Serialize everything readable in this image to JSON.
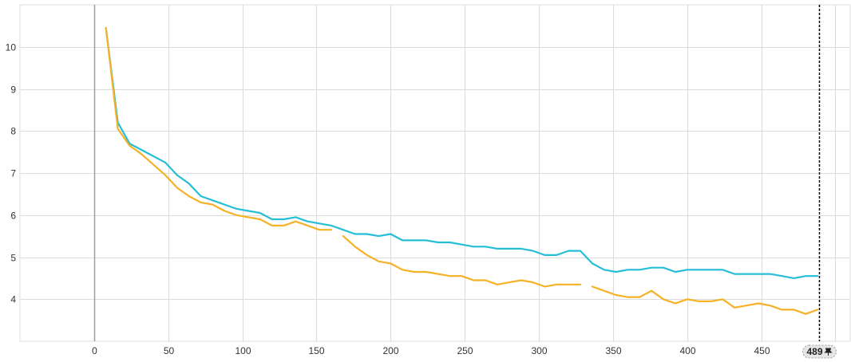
{
  "colors": {
    "series_teal": "#26bed6",
    "series_orange": "#f6b126",
    "grid": "#dcdcdc",
    "axis": "#9e9e9e",
    "cursor": "#000000"
  },
  "cursor": {
    "label": "489",
    "icon": "pin-icon",
    "value": 489
  },
  "chart_data": {
    "type": "line",
    "title": "",
    "xlabel": "",
    "ylabel": "",
    "xlim": [
      -50,
      510
    ],
    "ylim": [
      3,
      11
    ],
    "grid": true,
    "x_ticks": [
      "0",
      "50",
      "100",
      "150",
      "200",
      "250",
      "300",
      "350",
      "400",
      "450"
    ],
    "y_ticks": [
      "4",
      "5",
      "6",
      "7",
      "8",
      "9",
      "10"
    ],
    "series": [
      {
        "color": "#26bed6",
        "points": [
          [
            8,
            10.45
          ],
          [
            16,
            8.2
          ],
          [
            24,
            7.7
          ],
          [
            32,
            7.55
          ],
          [
            40,
            7.4
          ],
          [
            48,
            7.25
          ],
          [
            56,
            6.95
          ],
          [
            64,
            6.75
          ],
          [
            72,
            6.45
          ],
          [
            80,
            6.35
          ],
          [
            88,
            6.25
          ],
          [
            96,
            6.15
          ],
          [
            104,
            6.1
          ],
          [
            112,
            6.05
          ],
          [
            120,
            5.9
          ],
          [
            128,
            5.9
          ],
          [
            136,
            5.95
          ],
          [
            144,
            5.85
          ],
          [
            152,
            5.8
          ],
          [
            160,
            5.75
          ],
          [
            168,
            5.65
          ],
          [
            176,
            5.55
          ],
          [
            184,
            5.55
          ],
          [
            192,
            5.5
          ],
          [
            200,
            5.55
          ],
          [
            208,
            5.4
          ],
          [
            216,
            5.4
          ],
          [
            224,
            5.4
          ],
          [
            232,
            5.35
          ],
          [
            240,
            5.35
          ],
          [
            248,
            5.3
          ],
          [
            256,
            5.25
          ],
          [
            264,
            5.25
          ],
          [
            272,
            5.2
          ],
          [
            280,
            5.2
          ],
          [
            288,
            5.2
          ],
          [
            296,
            5.15
          ],
          [
            304,
            5.05
          ],
          [
            312,
            5.05
          ],
          [
            320,
            5.15
          ],
          [
            328,
            5.15
          ],
          [
            336,
            4.85
          ],
          [
            344,
            4.7
          ],
          [
            352,
            4.65
          ],
          [
            360,
            4.7
          ],
          [
            368,
            4.7
          ],
          [
            376,
            4.75
          ],
          [
            384,
            4.75
          ],
          [
            392,
            4.65
          ],
          [
            400,
            4.7
          ],
          [
            408,
            4.7
          ],
          [
            416,
            4.7
          ],
          [
            424,
            4.7
          ],
          [
            432,
            4.6
          ],
          [
            440,
            4.6
          ],
          [
            448,
            4.6
          ],
          [
            456,
            4.6
          ],
          [
            464,
            4.55
          ],
          [
            472,
            4.5
          ],
          [
            480,
            4.55
          ],
          [
            488,
            4.55
          ]
        ]
      },
      {
        "color": "#f6b126",
        "points": [
          [
            8,
            10.45
          ],
          [
            16,
            8.05
          ],
          [
            24,
            7.65
          ],
          [
            32,
            7.45
          ],
          [
            40,
            7.2
          ],
          [
            48,
            6.95
          ],
          [
            56,
            6.65
          ],
          [
            64,
            6.45
          ],
          [
            72,
            6.3
          ],
          [
            80,
            6.25
          ],
          [
            88,
            6.1
          ],
          [
            96,
            6.0
          ],
          [
            104,
            5.95
          ],
          [
            112,
            5.9
          ],
          [
            120,
            5.75
          ],
          [
            128,
            5.75
          ],
          [
            136,
            5.85
          ],
          [
            144,
            5.75
          ],
          [
            152,
            5.65
          ],
          [
            160,
            5.65
          ],
          null,
          [
            168,
            5.5
          ],
          [
            176,
            5.25
          ],
          [
            184,
            5.05
          ],
          [
            192,
            4.9
          ],
          [
            200,
            4.85
          ],
          [
            208,
            4.7
          ],
          [
            216,
            4.65
          ],
          [
            224,
            4.65
          ],
          [
            232,
            4.6
          ],
          [
            240,
            4.55
          ],
          [
            248,
            4.55
          ],
          [
            256,
            4.45
          ],
          [
            264,
            4.45
          ],
          [
            272,
            4.35
          ],
          [
            280,
            4.4
          ],
          [
            288,
            4.45
          ],
          [
            296,
            4.4
          ],
          [
            304,
            4.3
          ],
          [
            312,
            4.35
          ],
          [
            320,
            4.35
          ],
          [
            328,
            4.35
          ],
          null,
          [
            336,
            4.3
          ],
          [
            344,
            4.2
          ],
          [
            352,
            4.1
          ],
          [
            360,
            4.05
          ],
          [
            368,
            4.05
          ],
          [
            376,
            4.2
          ],
          [
            384,
            4.0
          ],
          [
            392,
            3.9
          ],
          [
            400,
            4.0
          ],
          [
            408,
            3.95
          ],
          [
            416,
            3.95
          ],
          [
            424,
            4.0
          ],
          [
            432,
            3.8
          ],
          [
            440,
            3.85
          ],
          [
            448,
            3.9
          ],
          [
            456,
            3.85
          ],
          [
            464,
            3.75
          ],
          [
            472,
            3.75
          ],
          [
            480,
            3.65
          ],
          [
            488,
            3.75
          ]
        ]
      }
    ]
  }
}
